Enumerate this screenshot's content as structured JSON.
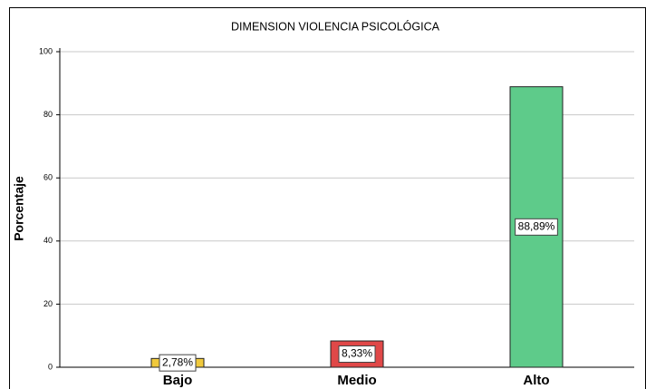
{
  "chart_data": {
    "type": "bar",
    "title": "DIMENSION VIOLENCIA PSICOLÓGICA",
    "y_label": "Porcentaje",
    "categories": [
      "Bajo",
      "Medio",
      "Alto"
    ],
    "values": [
      2.78,
      8.33,
      88.89
    ],
    "value_labels": [
      "2,78%",
      "8,33%",
      "88,89%"
    ],
    "colors": [
      "#f0c93c",
      "#e04848",
      "#5ecb8a"
    ],
    "ylim": [
      0,
      100
    ],
    "yticks": [
      0,
      20,
      40,
      60,
      80,
      100
    ],
    "grid": true
  }
}
